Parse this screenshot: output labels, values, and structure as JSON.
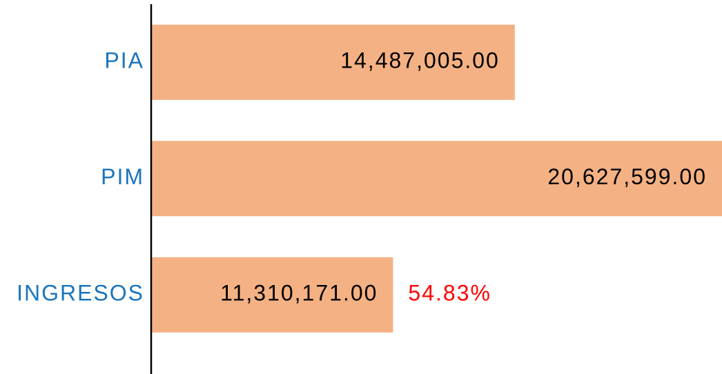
{
  "chart_data": {
    "type": "hbar",
    "categories": [
      "PIA",
      "PIM",
      "INGRESOS"
    ],
    "values": [
      14487005,
      20627599,
      11310171
    ],
    "value_labels": [
      "14,487,005.00",
      "20,627,599.00",
      "11,310,171.00"
    ],
    "color": "#f4b183",
    "xlim": [
      5000000,
      20000000
    ],
    "annotations": [
      "54.83%"
    ]
  }
}
